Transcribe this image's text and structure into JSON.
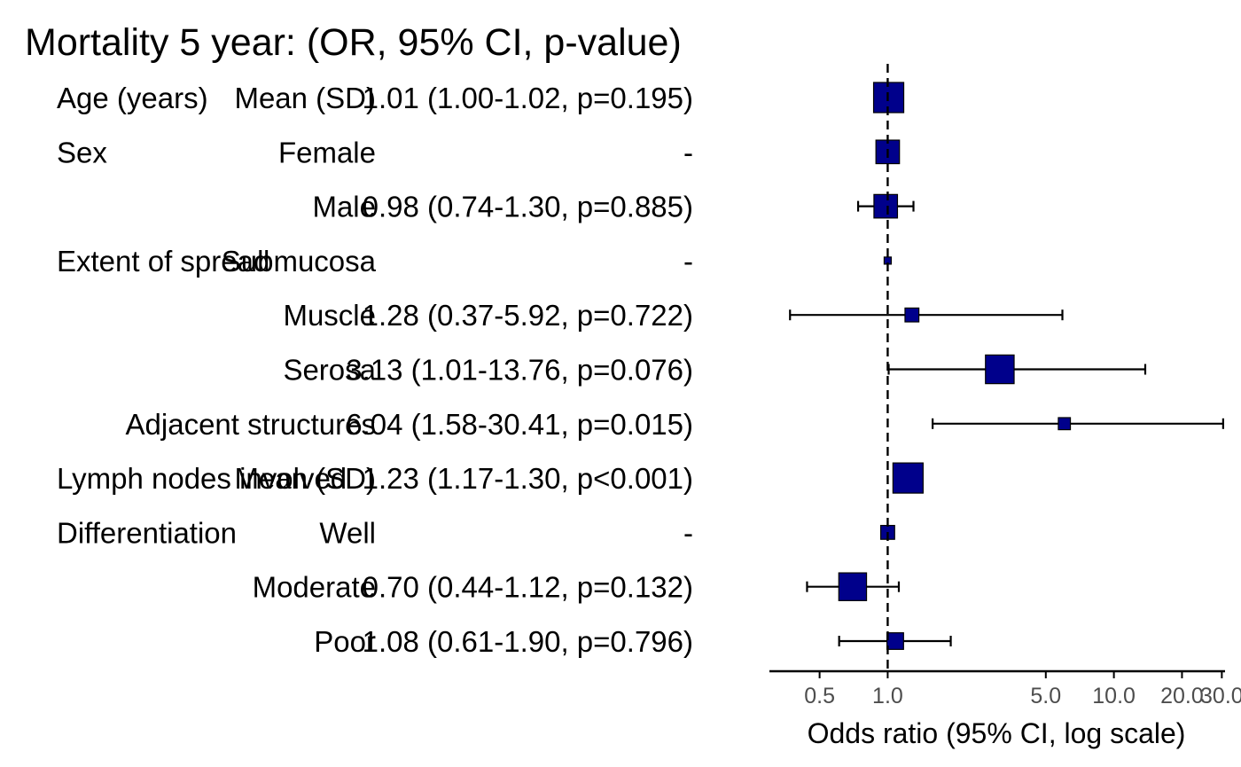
{
  "title": "Mortality 5 year: (OR, 95% CI, p-value)",
  "colors": {
    "box_fill": "#00008B",
    "stroke": "#000000",
    "tick_label": "#4d4d4d"
  },
  "chart_data": {
    "type": "forest",
    "xlabel": "Odds ratio (95% CI, log scale)",
    "x_scale": "log",
    "xlim": [
      0.3,
      31
    ],
    "reference_line": 1.0,
    "x_ticks": [
      0.5,
      1.0,
      5.0,
      10.0,
      20.0,
      30.0
    ],
    "x_tick_labels": [
      "0.5",
      "1.0",
      "5.0",
      "10.0",
      "20.0",
      "30.0"
    ],
    "rows": [
      {
        "variable": "Age (years)",
        "level": "Mean (SD)",
        "result": "1.01 (1.00-1.02, p=0.195)",
        "or": 1.01,
        "lower": 1.0,
        "upper": 1.02,
        "weight": 1.0
      },
      {
        "variable": "Sex",
        "level": "Female",
        "result": "-",
        "or": 1.0,
        "lower": null,
        "upper": null,
        "weight": 0.78
      },
      {
        "variable": "",
        "level": "Male",
        "result": "0.98 (0.74-1.30, p=0.885)",
        "or": 0.98,
        "lower": 0.74,
        "upper": 1.3,
        "weight": 0.78
      },
      {
        "variable": "Extent of spread",
        "level": "Submucosa",
        "result": "-",
        "or": 1.0,
        "lower": null,
        "upper": null,
        "weight": 0.22
      },
      {
        "variable": "",
        "level": "Muscle",
        "result": "1.28 (0.37-5.92, p=0.722)",
        "or": 1.28,
        "lower": 0.37,
        "upper": 5.92,
        "weight": 0.46
      },
      {
        "variable": "",
        "level": "Serosa",
        "result": "3.13 (1.01-13.76, p=0.076)",
        "or": 3.13,
        "lower": 1.01,
        "upper": 13.76,
        "weight": 0.95
      },
      {
        "variable": "",
        "level": "Adjacent structures",
        "result": "6.04 (1.58-30.41, p=0.015)",
        "or": 6.04,
        "lower": 1.58,
        "upper": 30.41,
        "weight": 0.4
      },
      {
        "variable": "Lymph nodes involved",
        "level": "Mean (SD)",
        "result": "1.23 (1.17-1.30, p<0.001)",
        "or": 1.23,
        "lower": 1.17,
        "upper": 1.3,
        "weight": 1.0
      },
      {
        "variable": "Differentiation",
        "level": "Well",
        "result": "-",
        "or": 1.0,
        "lower": null,
        "upper": null,
        "weight": 0.46
      },
      {
        "variable": "",
        "level": "Moderate",
        "result": "0.70 (0.44-1.12, p=0.132)",
        "or": 0.7,
        "lower": 0.44,
        "upper": 1.12,
        "weight": 0.92
      },
      {
        "variable": "",
        "level": "Poor",
        "result": "1.08 (0.61-1.90, p=0.796)",
        "or": 1.08,
        "lower": 0.61,
        "upper": 1.9,
        "weight": 0.55
      }
    ]
  }
}
